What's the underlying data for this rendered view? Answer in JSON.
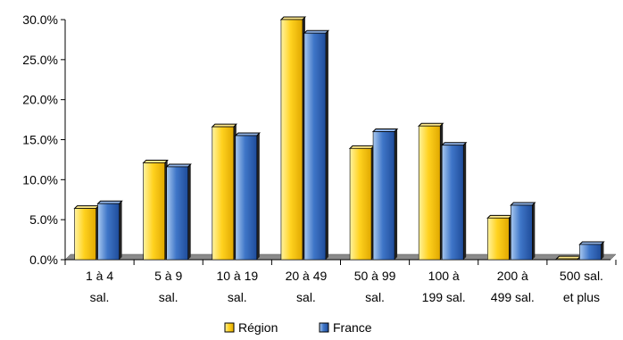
{
  "chart_data": {
    "type": "bar",
    "title": "",
    "xlabel": "",
    "ylabel": "",
    "ylim": [
      0,
      30
    ],
    "y_tick_labels": [
      "0.0%",
      "5.0%",
      "10.0%",
      "15.0%",
      "20.0%",
      "25.0%",
      "30.0%"
    ],
    "y_ticks": [
      0,
      5,
      10,
      15,
      20,
      25,
      30
    ],
    "categories": [
      [
        "1 à 4",
        "sal."
      ],
      [
        "5 à 9",
        "sal."
      ],
      [
        "10 à 19",
        "sal."
      ],
      [
        "20 à 49",
        "sal."
      ],
      [
        "50 à 99",
        "sal."
      ],
      [
        "100 à",
        "199 sal."
      ],
      [
        "200 à",
        "499 sal."
      ],
      [
        "500 sal.",
        "et plus"
      ]
    ],
    "series": [
      {
        "name": "Région",
        "color": "#FFD21F",
        "values": [
          6.4,
          12.1,
          16.6,
          30.0,
          13.9,
          16.7,
          5.2,
          0.1
        ]
      },
      {
        "name": "France",
        "color": "#3F76C8",
        "values": [
          7.0,
          11.6,
          15.5,
          28.3,
          16.0,
          14.3,
          6.8,
          1.9
        ]
      }
    ],
    "legend_position": "bottom",
    "grid": false,
    "style": "3d-clustered-bar"
  }
}
